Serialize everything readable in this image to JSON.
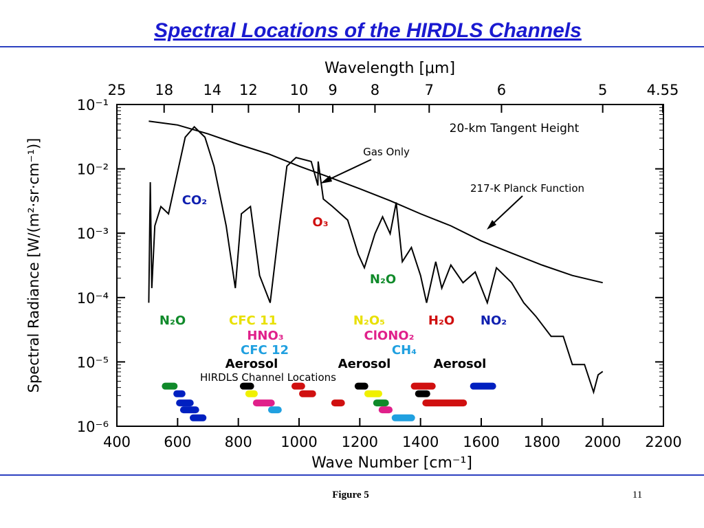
{
  "chart_data": {
    "type": "line",
    "title": "Spectral Locations of the HIRDLS Channels",
    "x_label": "Wave Number [cm⁻¹]",
    "x2_label": "Wavelength [μm]",
    "y_label": "Spectral Radiance [W/(m²·sr·cm⁻¹)]",
    "log_y": true,
    "xlim": [
      400,
      2200
    ],
    "xticks": [
      400,
      600,
      800,
      1000,
      1200,
      1400,
      1600,
      1800,
      2000,
      2200
    ],
    "x2ticks": [
      25,
      18,
      14,
      12,
      10,
      9,
      8,
      7,
      6,
      5,
      4.55
    ],
    "ylim": [
      1e-06,
      0.1
    ],
    "yticks": [
      {
        "value": 0.1,
        "label": "10⁻¹"
      },
      {
        "value": 0.01,
        "label": "10⁻²"
      },
      {
        "value": 0.001,
        "label": "10⁻³"
      },
      {
        "value": 0.0001,
        "label": "10⁻⁴"
      },
      {
        "value": 1e-05,
        "label": "10⁻⁵"
      },
      {
        "value": 1e-06,
        "label": "10⁻⁶"
      }
    ],
    "series": [
      {
        "name": "Gas Only",
        "color": "#000000",
        "x": [
          505,
          510,
          515,
          525,
          545,
          570,
          600,
          625,
          655,
          690,
          720,
          760,
          790,
          810,
          840,
          870,
          905,
          935,
          960,
          990,
          1040,
          1062,
          1063,
          1080,
          1110,
          1160,
          1195,
          1215,
          1250,
          1275,
          1300,
          1320,
          1340,
          1370,
          1400,
          1420,
          1450,
          1470,
          1500,
          1540,
          1580,
          1620,
          1650,
          1700,
          1740,
          1780,
          1830,
          1870,
          1900,
          1940,
          1970,
          1985,
          2000
        ],
        "values": [
          8.3e-05,
          0.0062,
          0.00014,
          0.0013,
          0.0026,
          0.002,
          0.0089,
          0.031,
          0.045,
          0.031,
          0.011,
          0.0013,
          0.00014,
          0.002,
          0.0026,
          0.00022,
          8.3e-05,
          0.0013,
          0.011,
          0.015,
          0.013,
          0.0055,
          0.013,
          0.0034,
          0.0026,
          0.0016,
          0.00047,
          0.00029,
          0.00098,
          0.0018,
          0.00098,
          0.003,
          0.00036,
          0.0006,
          0.00022,
          8.3e-05,
          0.00036,
          0.00014,
          0.00032,
          0.00017,
          0.00025,
          8.3e-05,
          0.00029,
          0.00017,
          8.3e-05,
          5.1e-05,
          2.5e-05,
          2.5e-05,
          9.1e-06,
          9.1e-06,
          3.4e-06,
          6.3e-06,
          7.1e-06
        ]
      },
      {
        "name": "217-K Planck Function",
        "color": "#000000",
        "x": [
          505,
          600,
          700,
          800,
          900,
          1000,
          1100,
          1200,
          1300,
          1400,
          1500,
          1600,
          1700,
          1800,
          1900,
          2000
        ],
        "values": [
          0.055,
          0.048,
          0.035,
          0.024,
          0.017,
          0.011,
          0.0074,
          0.0049,
          0.0032,
          0.002,
          0.0013,
          0.00076,
          0.00049,
          0.00032,
          0.00022,
          0.00017
        ]
      }
    ],
    "annotations": [
      "20-km Tangent Height",
      "HIRDLS Channel Locations"
    ],
    "gases": [
      {
        "text": "CO₂",
        "color": "#1020b0"
      },
      {
        "text": "O₃",
        "color": "#d01010"
      },
      {
        "text": "N₂O",
        "color": "#108a2a"
      },
      {
        "text": "N₂O",
        "color": "#108a2a"
      },
      {
        "text": "CFC 11",
        "color": "#e8e000"
      },
      {
        "text": "HNO₃",
        "color": "#e0208a"
      },
      {
        "text": "CFC 12",
        "color": "#20a0e0"
      },
      {
        "text": "N₂O₅",
        "color": "#e8e000"
      },
      {
        "text": "ClONO₂",
        "color": "#e0208a"
      },
      {
        "text": "CH₄",
        "color": "#20a0e0"
      },
      {
        "text": "H₂O",
        "color": "#d01010"
      },
      {
        "text": "NO₂",
        "color": "#1020b0"
      },
      {
        "text": "Aerosol",
        "color": "#000000"
      },
      {
        "text": "Aerosol",
        "color": "#000000"
      },
      {
        "text": "Aerosol",
        "color": "#000000"
      }
    ],
    "channels": [
      {
        "x0": 548,
        "x1": 600,
        "y": 4.2e-06,
        "color": "#108a2a"
      },
      {
        "x0": 805,
        "x1": 852,
        "y": 4.2e-06,
        "color": "#000000"
      },
      {
        "x0": 975,
        "x1": 1020,
        "y": 4.2e-06,
        "color": "#d01010"
      },
      {
        "x0": 1183,
        "x1": 1228,
        "y": 4.2e-06,
        "color": "#000000"
      },
      {
        "x0": 1368,
        "x1": 1450,
        "y": 4.2e-06,
        "color": "#d01010"
      },
      {
        "x0": 1563,
        "x1": 1649,
        "y": 4.2e-06,
        "color": "#0020c0"
      },
      {
        "x0": 586,
        "x1": 626,
        "y": 3.2e-06,
        "color": "#0020c0"
      },
      {
        "x0": 823,
        "x1": 864,
        "y": 3.2e-06,
        "color": "#f0f000"
      },
      {
        "x0": 1000,
        "x1": 1056,
        "y": 3.2e-06,
        "color": "#d01010"
      },
      {
        "x0": 1215,
        "x1": 1274,
        "y": 3.2e-06,
        "color": "#f0f000"
      },
      {
        "x0": 1382,
        "x1": 1432,
        "y": 3.2e-06,
        "color": "#000000"
      },
      {
        "x0": 595,
        "x1": 653,
        "y": 2.3e-06,
        "color": "#0020c0"
      },
      {
        "x0": 848,
        "x1": 920,
        "y": 2.3e-06,
        "color": "#e0208a"
      },
      {
        "x0": 1106,
        "x1": 1151,
        "y": 2.3e-06,
        "color": "#d01010"
      },
      {
        "x0": 1244,
        "x1": 1296,
        "y": 2.3e-06,
        "color": "#108a2a"
      },
      {
        "x0": 1406,
        "x1": 1553,
        "y": 2.3e-06,
        "color": "#d01010"
      },
      {
        "x0": 608,
        "x1": 671,
        "y": 1.8e-06,
        "color": "#0020c0"
      },
      {
        "x0": 898,
        "x1": 943,
        "y": 1.8e-06,
        "color": "#20a0e0"
      },
      {
        "x0": 1262,
        "x1": 1308,
        "y": 1.8e-06,
        "color": "#e0208a"
      },
      {
        "x0": 640,
        "x1": 695,
        "y": 1.35e-06,
        "color": "#0020c0"
      },
      {
        "x0": 1305,
        "x1": 1382,
        "y": 1.35e-06,
        "color": "#20a0e0"
      }
    ]
  },
  "footer": {
    "caption": "Figure 5",
    "page": "11"
  }
}
